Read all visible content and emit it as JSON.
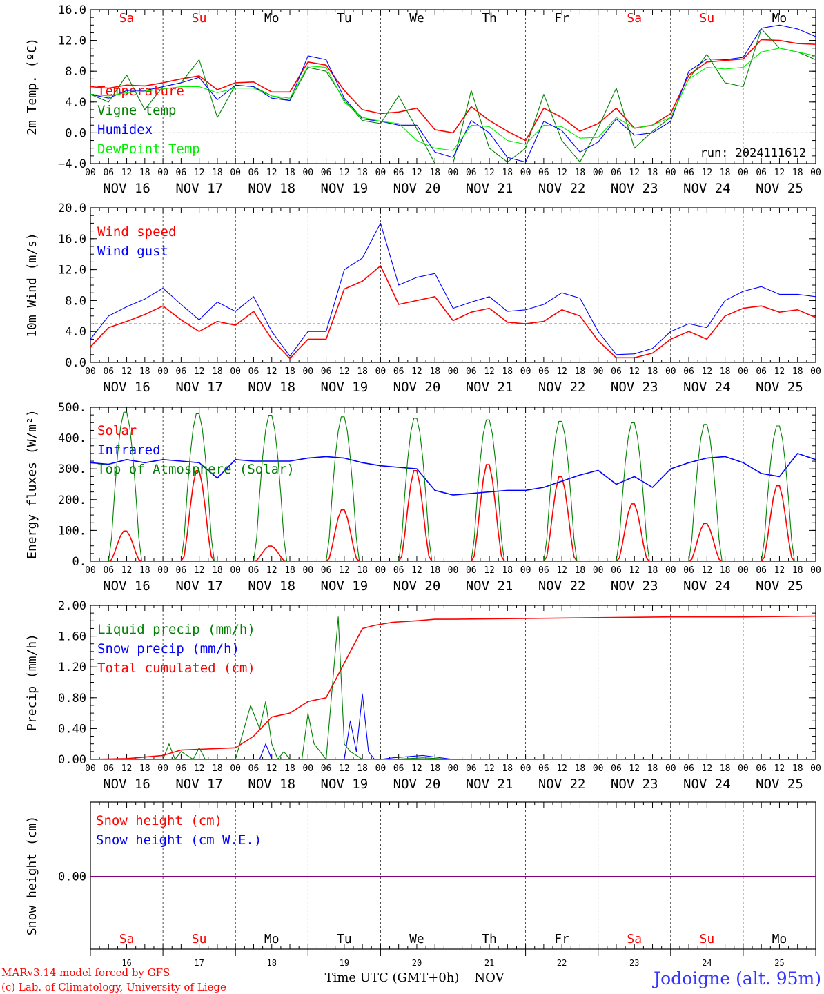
{
  "header": {
    "run_label": "run: 2024111612"
  },
  "days": {
    "weekday_labels": [
      "Sa",
      "Su",
      "Mo",
      "Tu",
      "We",
      "Th",
      "Fr",
      "Sa",
      "Su",
      "Mo"
    ],
    "date_labels": [
      "NOV 16",
      "NOV 17",
      "NOV 18",
      "NOV 19",
      "NOV 20",
      "NOV 21",
      "NOV 22",
      "NOV 23",
      "NOV 24",
      "NOV 25"
    ],
    "day_numbers": [
      "16",
      "17",
      "18",
      "19",
      "20",
      "21",
      "22",
      "23",
      "24",
      "25"
    ],
    "hour_ticks": [
      "00",
      "06",
      "12",
      "18"
    ],
    "weekend_color": "#ff0000",
    "weekday_color": "#000000"
  },
  "colors": {
    "red": "#ff0000",
    "green": "#008000",
    "blue": "#0000ff",
    "lightgreen": "#00ee00",
    "purple": "#800080"
  },
  "chart_data": [
    {
      "type": "line",
      "ylabel": "2m Temp. (ºC)",
      "ylim": [
        -4,
        16
      ],
      "yticks": [
        "−4.0",
        "0.0",
        "4.0",
        "8.0",
        "12.0",
        "16.0"
      ],
      "reference_line": 0,
      "x_unit": "hours since NOV 16 00 UTC",
      "series": [
        {
          "name": "Temperature",
          "color": "#ff0000",
          "x": [
            0,
            6,
            12,
            18,
            24,
            30,
            36,
            42,
            48,
            54,
            60,
            66,
            72,
            78,
            84,
            90,
            96,
            102,
            108,
            114,
            120,
            126,
            132,
            138,
            144,
            150,
            156,
            162,
            168,
            174,
            180,
            186,
            192,
            198,
            204,
            210,
            216,
            222,
            228,
            234,
            240
          ],
          "y": [
            6,
            5.8,
            6.2,
            6.1,
            6.5,
            7,
            7.4,
            5.6,
            6.5,
            6.6,
            5.3,
            5.3,
            9.2,
            8.8,
            5.5,
            3,
            2.5,
            2.7,
            3.2,
            0.4,
            0,
            3.4,
            1.6,
            0.2,
            -1,
            3.2,
            2,
            0.2,
            1.2,
            3.2,
            0.6,
            1,
            2.5,
            7.5,
            9.2,
            9.4,
            9.6,
            12.1,
            12,
            11.6,
            11.5
          ]
        },
        {
          "name": "Vigne temp",
          "color": "#008000",
          "x": [
            0,
            6,
            12,
            18,
            24,
            30,
            36,
            42,
            48,
            54,
            60,
            66,
            72,
            78,
            84,
            90,
            96,
            102,
            108,
            114,
            120,
            126,
            132,
            138,
            144,
            150,
            156,
            162,
            168,
            174,
            180,
            186,
            192,
            198,
            204,
            210,
            216,
            222,
            228,
            234,
            240
          ],
          "y": [
            5,
            4,
            7.5,
            3,
            6,
            6.5,
            9.5,
            2,
            6.2,
            6,
            4.8,
            4.2,
            8.5,
            8,
            4.3,
            1.6,
            1.2,
            4.8,
            0.5,
            -4,
            -4,
            5.5,
            -2,
            -3.8,
            -2,
            5,
            -1,
            -3.8,
            0.6,
            5.8,
            -2,
            0.2,
            2,
            7,
            10.2,
            6.5,
            6,
            13.5,
            11,
            10.5,
            9.5
          ]
        },
        {
          "name": "Humidex",
          "color": "#0000ff",
          "x": [
            0,
            6,
            12,
            18,
            24,
            30,
            36,
            42,
            48,
            54,
            60,
            66,
            72,
            78,
            84,
            90,
            96,
            102,
            108,
            114,
            120,
            126,
            132,
            138,
            144,
            150,
            156,
            162,
            168,
            174,
            180,
            186,
            192,
            198,
            204,
            210,
            216,
            222,
            228,
            234,
            240
          ],
          "y": [
            5,
            4.5,
            5.5,
            5.5,
            6,
            6.5,
            7.2,
            4.3,
            6.2,
            6,
            4.5,
            4.2,
            10,
            9.5,
            4.5,
            1.8,
            1.5,
            1,
            1,
            -2.5,
            -3.2,
            1.6,
            0,
            -3.2,
            -3.8,
            1.5,
            0.3,
            -2.5,
            -1.2,
            1.8,
            -0.3,
            0,
            1.5,
            8,
            9.6,
            9.5,
            9.8,
            13.6,
            14,
            13.5,
            12.5
          ]
        },
        {
          "name": "DewPoint Temp",
          "color": "#00ee00",
          "x": [
            0,
            6,
            12,
            18,
            24,
            30,
            36,
            42,
            48,
            54,
            60,
            66,
            72,
            78,
            84,
            90,
            96,
            102,
            108,
            114,
            120,
            126,
            132,
            138,
            144,
            150,
            156,
            162,
            168,
            174,
            180,
            186,
            192,
            198,
            204,
            210,
            216,
            222,
            228,
            234,
            240
          ],
          "y": [
            5,
            4.8,
            5.2,
            5.4,
            5.7,
            6,
            6,
            5.2,
            5.8,
            5.8,
            4.8,
            4.5,
            8.7,
            8.5,
            4,
            2,
            1.5,
            1.2,
            -1,
            -2,
            -2.3,
            1,
            0.8,
            -1,
            -1.5,
            1,
            0.8,
            -0.7,
            -0.6,
            2,
            0.6,
            1,
            2,
            7,
            8.5,
            8.3,
            8.5,
            10.5,
            11,
            10.5,
            10
          ]
        }
      ]
    },
    {
      "type": "line",
      "ylabel": "10m Wind (m/s)",
      "ylim": [
        0,
        20
      ],
      "yticks": [
        "0.0",
        "4.0",
        "8.0",
        "12.0",
        "16.0",
        "20.0"
      ],
      "reference_line": 5,
      "series": [
        {
          "name": "Wind speed",
          "color": "#ff0000",
          "x": [
            0,
            6,
            12,
            18,
            24,
            30,
            36,
            42,
            48,
            54,
            60,
            66,
            72,
            78,
            84,
            90,
            96,
            102,
            108,
            114,
            120,
            126,
            132,
            138,
            144,
            150,
            156,
            162,
            168,
            174,
            180,
            186,
            192,
            198,
            204,
            210,
            216,
            222,
            228,
            234,
            240
          ],
          "y": [
            2,
            4.5,
            5.3,
            6.2,
            7.3,
            5.5,
            4,
            5.3,
            4.8,
            6.6,
            3,
            0.5,
            3,
            3,
            9.5,
            10.5,
            12.5,
            7.5,
            8,
            8.5,
            5.4,
            6.5,
            7,
            5.2,
            5,
            5.3,
            6.8,
            6,
            2.8,
            0.6,
            0.6,
            1.2,
            3,
            4,
            3,
            6,
            7,
            7.3,
            6.5,
            6.8,
            5.8
          ]
        },
        {
          "name": "Wind gust",
          "color": "#0000ff",
          "x": [
            0,
            6,
            12,
            18,
            24,
            30,
            36,
            42,
            48,
            54,
            60,
            66,
            72,
            78,
            84,
            90,
            96,
            102,
            108,
            114,
            120,
            126,
            132,
            138,
            144,
            150,
            156,
            162,
            168,
            174,
            180,
            186,
            192,
            198,
            204,
            210,
            216,
            222,
            228,
            234,
            240
          ],
          "y": [
            3,
            6,
            7.2,
            8.2,
            9.6,
            7.5,
            5.5,
            7.8,
            6.6,
            8.5,
            4,
            0.8,
            4,
            4,
            12,
            13.5,
            18,
            10,
            11,
            11.5,
            7,
            7.8,
            8.5,
            6.6,
            6.8,
            7.5,
            9,
            8.3,
            4,
            1,
            1.1,
            1.8,
            4,
            5,
            4.5,
            8,
            9.2,
            9.8,
            8.8,
            8.8,
            8.5
          ]
        }
      ]
    },
    {
      "type": "line",
      "ylabel": "Energy fluxes (W/m²)",
      "ylim": [
        0,
        500
      ],
      "yticks": [
        "0.",
        "100.",
        "200.",
        "300.",
        "400.",
        "500."
      ],
      "series": [
        {
          "name": "Solar",
          "color": "#ff0000",
          "daily_peak": [
            100,
            300,
            50,
            170,
            300,
            320,
            280,
            190,
            125,
            250
          ]
        },
        {
          "name": "Infrared",
          "color": "#0000ff",
          "x": [
            0,
            6,
            12,
            18,
            24,
            30,
            36,
            42,
            48,
            54,
            60,
            66,
            72,
            78,
            84,
            90,
            96,
            102,
            108,
            114,
            120,
            126,
            132,
            138,
            144,
            150,
            156,
            162,
            168,
            174,
            180,
            186,
            192,
            198,
            204,
            210,
            216,
            222,
            228,
            234,
            240
          ],
          "y": [
            320,
            315,
            330,
            320,
            330,
            325,
            320,
            270,
            330,
            325,
            325,
            325,
            335,
            340,
            335,
            320,
            310,
            305,
            300,
            230,
            215,
            220,
            225,
            230,
            230,
            240,
            260,
            280,
            295,
            250,
            275,
            240,
            300,
            320,
            335,
            340,
            320,
            285,
            275,
            350,
            330
          ]
        },
        {
          "name": "Top of Atmosphere (Solar)",
          "color": "#008000",
          "daily_peak": [
            490,
            485,
            480,
            475,
            470,
            465,
            460,
            455,
            450,
            445
          ]
        }
      ]
    },
    {
      "type": "line",
      "ylabel": "Precip (mm/h)",
      "ylim": [
        0,
        2
      ],
      "yticks": [
        "0.00",
        "0.40",
        "0.80",
        "1.20",
        "1.60",
        "2.00"
      ],
      "series": [
        {
          "name": "Liquid precip (mm/h)",
          "color": "#008000",
          "x": [
            0,
            24,
            26,
            28,
            30,
            34,
            36,
            38,
            42,
            48,
            53,
            56,
            58,
            60,
            62,
            64,
            66,
            70,
            72,
            74,
            76,
            78,
            82,
            84,
            86,
            88,
            90,
            94,
            96,
            100,
            110,
            120,
            240
          ],
          "y": [
            0,
            0,
            0.2,
            0,
            0.1,
            0,
            0.15,
            0,
            0,
            0,
            0.7,
            0.4,
            0.75,
            0.2,
            0,
            0.1,
            0,
            0,
            0.6,
            0.2,
            0.1,
            0,
            1.85,
            0.2,
            0.1,
            0.05,
            0,
            0,
            0,
            0,
            0.02,
            0,
            0
          ]
        },
        {
          "name": "Snow precip (mm/h)",
          "color": "#0000ff",
          "x": [
            0,
            56,
            58,
            60,
            72,
            84,
            86,
            88,
            90,
            92,
            94,
            96,
            100,
            110,
            120,
            240
          ],
          "y": [
            0,
            0,
            0.2,
            0,
            0,
            0,
            0.5,
            0.1,
            0.85,
            0.1,
            0,
            0,
            0.02,
            0.05,
            0,
            0
          ]
        },
        {
          "name": "Total cumulated (cm)",
          "color": "#ff0000",
          "x": [
            0,
            12,
            24,
            30,
            36,
            48,
            54,
            60,
            66,
            72,
            78,
            84,
            88,
            90,
            94,
            100,
            108,
            114,
            120,
            144,
            168,
            192,
            216,
            240
          ],
          "y": [
            0,
            0.01,
            0.05,
            0.12,
            0.13,
            0.15,
            0.3,
            0.55,
            0.6,
            0.75,
            0.8,
            1.25,
            1.55,
            1.7,
            1.74,
            1.78,
            1.8,
            1.82,
            1.82,
            1.83,
            1.84,
            1.85,
            1.85,
            1.86
          ]
        }
      ]
    },
    {
      "type": "line",
      "ylabel": "Snow height (cm)",
      "yticks": [
        "0.00"
      ],
      "series": [
        {
          "name": "Snow height (cm)",
          "color": "#ff0000",
          "x": [
            0,
            240
          ],
          "y": [
            0,
            0
          ]
        },
        {
          "name": "Snow height (cm W.E.)",
          "color": "#0000ff",
          "x": [
            0,
            240
          ],
          "y": [
            0,
            0
          ]
        }
      ]
    }
  ],
  "footer": {
    "xlabel": "Time UTC (GMT+0h)",
    "month": "NOV",
    "credit_line1": "MARv3.14 model forced by GFS",
    "credit_line2": "(c) Lab. of Climatology, University of Liege",
    "location": "Jodoigne (alt. 95m)"
  }
}
